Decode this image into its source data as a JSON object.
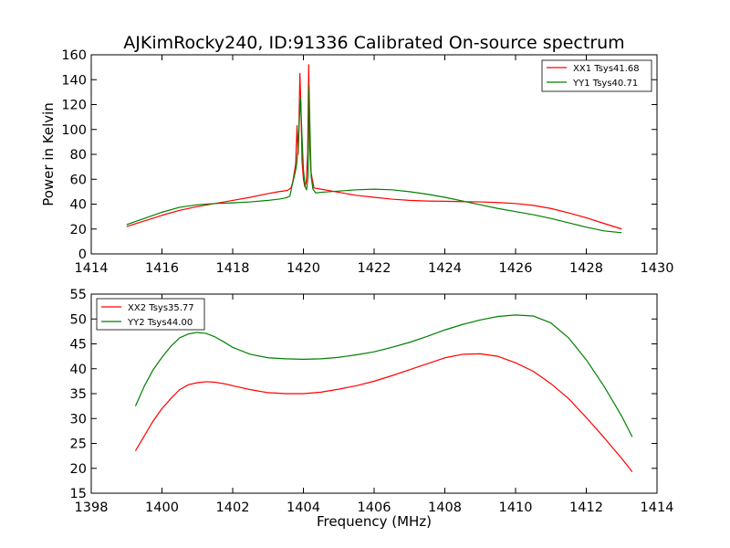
{
  "chart_data": [
    {
      "type": "line",
      "title": "AJKimRocky240, ID:91336 Calibrated On-source spectrum",
      "xlabel": "",
      "ylabel": "Power in Kelvin",
      "xlim": [
        1414,
        1430
      ],
      "ylim": [
        0,
        160
      ],
      "xticks": [
        1414,
        1416,
        1418,
        1420,
        1422,
        1424,
        1426,
        1428,
        1430
      ],
      "yticks": [
        0,
        20,
        40,
        60,
        80,
        100,
        120,
        140,
        160
      ],
      "grid": false,
      "legend_position": "top-right",
      "series": [
        {
          "name": "XX1 Tsys41.68",
          "color": "#ff0000",
          "x": [
            1415.0,
            1415.5,
            1416.0,
            1416.5,
            1417.0,
            1417.5,
            1418.0,
            1418.5,
            1419.0,
            1419.3,
            1419.55,
            1419.65,
            1419.7,
            1419.78,
            1419.82,
            1419.85,
            1419.87,
            1419.9,
            1419.93,
            1419.96,
            1420.0,
            1420.04,
            1420.08,
            1420.12,
            1420.15,
            1420.18,
            1420.21,
            1420.25,
            1420.3,
            1420.5,
            1421.0,
            1421.5,
            1422.0,
            1422.5,
            1423.0,
            1423.5,
            1424.0,
            1424.5,
            1425.0,
            1425.5,
            1426.0,
            1426.5,
            1427.0,
            1427.5,
            1428.0,
            1428.5,
            1429.0
          ],
          "y": [
            22,
            26.5,
            31,
            35,
            38,
            40.5,
            43,
            45.5,
            48.5,
            50,
            51,
            53,
            58,
            72,
            103,
            80,
            95,
            145,
            120,
            75,
            60,
            54,
            58,
            80,
            152,
            85,
            67,
            60,
            53,
            52,
            49.5,
            47,
            45.5,
            44,
            43,
            42.5,
            42.3,
            42,
            41.8,
            41.3,
            40.5,
            39,
            36.5,
            33,
            29,
            24.5,
            20
          ]
        },
        {
          "name": "YY1 Tsys40.71",
          "color": "#008000",
          "x": [
            1415.0,
            1415.5,
            1416.0,
            1416.5,
            1417.0,
            1417.5,
            1418.0,
            1418.5,
            1419.0,
            1419.3,
            1419.5,
            1419.62,
            1419.68,
            1419.74,
            1419.8,
            1419.85,
            1419.88,
            1419.92,
            1419.96,
            1420.0,
            1420.05,
            1420.09,
            1420.13,
            1420.16,
            1420.19,
            1420.22,
            1420.27,
            1420.35,
            1420.5,
            1421.0,
            1421.5,
            1422.0,
            1422.5,
            1423.0,
            1423.5,
            1424.0,
            1424.5,
            1425.0,
            1425.5,
            1426.0,
            1426.5,
            1427.0,
            1427.5,
            1428.0,
            1428.5,
            1429.0
          ],
          "y": [
            23.5,
            28.5,
            33.5,
            37.5,
            39.5,
            40.5,
            41,
            41.8,
            43,
            44,
            45,
            46.5,
            55,
            62,
            70,
            85,
            105,
            125,
            95,
            68,
            54,
            51.5,
            62,
            135,
            95,
            62,
            52,
            49,
            49.5,
            50.5,
            51.5,
            52,
            51.5,
            50,
            48,
            45.5,
            42.5,
            39.5,
            36.5,
            34,
            31.5,
            28.5,
            25,
            21.5,
            18.5,
            17
          ]
        }
      ]
    },
    {
      "type": "line",
      "title": "",
      "xlabel": "Frequency (MHz)",
      "ylabel": "",
      "xlim": [
        1398,
        1414
      ],
      "ylim": [
        15,
        55
      ],
      "xticks": [
        1398,
        1400,
        1402,
        1404,
        1406,
        1408,
        1410,
        1412,
        1414
      ],
      "yticks": [
        15,
        20,
        25,
        30,
        35,
        40,
        45,
        50,
        55
      ],
      "grid": false,
      "legend_position": "top-left",
      "series": [
        {
          "name": "XX2 Tsys35.77",
          "color": "#ff0000",
          "x": [
            1399.25,
            1399.5,
            1399.75,
            1400.0,
            1400.25,
            1400.5,
            1400.75,
            1401.0,
            1401.25,
            1401.5,
            1401.75,
            1402.0,
            1402.5,
            1403.0,
            1403.5,
            1404.0,
            1404.5,
            1405.0,
            1405.5,
            1406.0,
            1406.5,
            1407.0,
            1407.5,
            1408.0,
            1408.5,
            1409.0,
            1409.5,
            1410.0,
            1410.5,
            1411.0,
            1411.5,
            1412.0,
            1412.5,
            1413.0,
            1413.3
          ],
          "y": [
            23.5,
            26.5,
            29.5,
            32.0,
            34.0,
            35.8,
            36.8,
            37.2,
            37.4,
            37.3,
            37.0,
            36.6,
            35.8,
            35.2,
            35.0,
            35.0,
            35.3,
            35.9,
            36.6,
            37.5,
            38.6,
            39.8,
            41.0,
            42.2,
            42.9,
            43.0,
            42.5,
            41.2,
            39.5,
            37.0,
            34.0,
            30.2,
            26.2,
            22.0,
            19.3
          ]
        },
        {
          "name": "YY2 Tsys44.00",
          "color": "#008000",
          "x": [
            1399.25,
            1399.5,
            1399.75,
            1400.0,
            1400.25,
            1400.5,
            1400.75,
            1401.0,
            1401.25,
            1401.5,
            1401.75,
            1402.0,
            1402.5,
            1403.0,
            1403.5,
            1404.0,
            1404.5,
            1405.0,
            1405.5,
            1406.0,
            1406.5,
            1407.0,
            1407.5,
            1408.0,
            1408.5,
            1409.0,
            1409.5,
            1410.0,
            1410.5,
            1411.0,
            1411.5,
            1412.0,
            1412.5,
            1413.0,
            1413.3
          ],
          "y": [
            32.5,
            36.5,
            39.8,
            42.3,
            44.5,
            46.2,
            47.0,
            47.3,
            47.1,
            46.4,
            45.4,
            44.3,
            42.9,
            42.2,
            42.0,
            41.9,
            42.0,
            42.3,
            42.8,
            43.4,
            44.3,
            45.3,
            46.5,
            47.8,
            48.9,
            49.8,
            50.5,
            50.8,
            50.6,
            49.2,
            46.2,
            41.8,
            36.5,
            30.5,
            26.3
          ]
        }
      ]
    }
  ]
}
